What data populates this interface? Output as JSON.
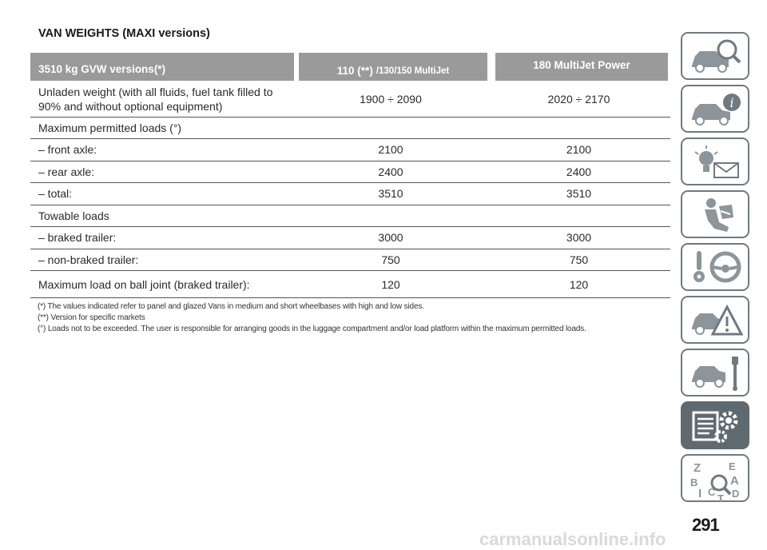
{
  "title": "VAN WEIGHTS (MAXI versions)",
  "table": {
    "headers": {
      "col1": "3510 kg GVW versions(*)",
      "col2_main": "110 (**)",
      "col2_sub": "/130/150 MultiJet",
      "col3": "180 MultiJet Power"
    },
    "rows": [
      {
        "label": "Unladen weight (with all fluids, fuel tank filled to 90% and without optional equipment)",
        "v1": "1900 ÷ 2090",
        "v2": "2020 ÷ 2170"
      },
      {
        "label": "Maximum permitted loads (°)",
        "v1": "",
        "v2": ""
      },
      {
        "label": "– front axle:",
        "v1": "2100",
        "v2": "2100"
      },
      {
        "label": "– rear axle:",
        "v1": "2400",
        "v2": "2400"
      },
      {
        "label": "– total:",
        "v1": "3510",
        "v2": "3510"
      },
      {
        "label": "Towable loads",
        "v1": "",
        "v2": ""
      },
      {
        "label": "– braked trailer:",
        "v1": "3000",
        "v2": "3000"
      },
      {
        "label": "– non-braked trailer:",
        "v1": "750",
        "v2": "750"
      },
      {
        "label": "Maximum load on ball joint (braked trailer):",
        "v1": "120",
        "v2": "120"
      }
    ]
  },
  "notes": [
    "(*) The values indicated refer to panel and glazed Vans in medium and short wheelbases with high and low sides.",
    "(**) Version for specific markets",
    "(°) Loads not to be exceeded. The user is responsible for arranging goods in the luggage compartment and/or load platform within the maximum permitted loads."
  ],
  "sidebar": {
    "tabs": [
      {
        "icon": "car-search-icon"
      },
      {
        "icon": "car-info-icon"
      },
      {
        "icon": "warning-lights-icon"
      },
      {
        "icon": "seat-airbag-icon"
      },
      {
        "icon": "key-steering-wheel-icon"
      },
      {
        "icon": "car-emergency-icon"
      },
      {
        "icon": "car-maintenance-icon"
      },
      {
        "icon": "technical-data-icon",
        "active": true
      },
      {
        "icon": "index-icon"
      }
    ],
    "active_color": "#5f6a70",
    "border_color": "#6f7a80"
  },
  "page_number": "291",
  "watermark": "carmanualsonline.info"
}
